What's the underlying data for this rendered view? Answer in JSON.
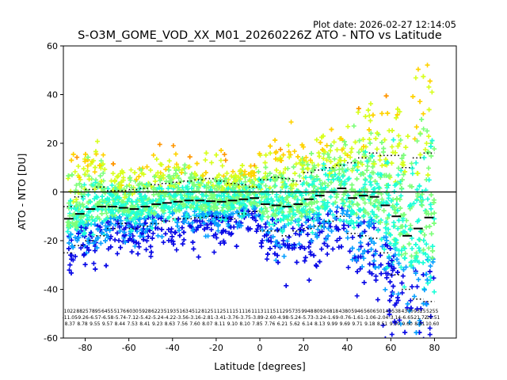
{
  "plot_date": "Plot date: 2026-02-27 12:14:05",
  "chart_data": {
    "type": "scatter",
    "title": "S-O3M_GOME_VOD_XX_M01_20260226Z ATO - NTO vs Latitude",
    "xlabel": "Latitude [degrees]",
    "ylabel": "ATO - NTO [DU]",
    "xlim": [
      -90,
      90
    ],
    "ylim": [
      -60,
      60
    ],
    "xticks": [
      -80,
      -60,
      -40,
      -20,
      0,
      20,
      40,
      60,
      80
    ],
    "yticks": [
      -60,
      -40,
      -20,
      0,
      20,
      40,
      60
    ],
    "reference_line_y": 0,
    "bin_lat": [
      -87.5,
      -82.5,
      -77.5,
      -72.5,
      -67.5,
      -62.5,
      -57.5,
      -52.5,
      -47.5,
      -42.5,
      -37.5,
      -32.5,
      -27.5,
      -22.5,
      -17.5,
      -12.5,
      -7.5,
      -2.5,
      2.5,
      7.5,
      12.5,
      17.5,
      22.5,
      27.5,
      32.5,
      37.5,
      42.5,
      47.5,
      52.5,
      57.5,
      62.5,
      67.5,
      72.5,
      77.5
    ],
    "bin_mean": [
      -11,
      -9,
      -7,
      -6,
      -6,
      -6.5,
      -7,
      -6,
      -5,
      -4.5,
      -4,
      -3.5,
      -3.5,
      -3.8,
      -4,
      -3.5,
      -3,
      -2.5,
      -5,
      -5.5,
      -6,
      -5,
      -3,
      -1.5,
      0,
      1.5,
      -2.5,
      -1.5,
      -2,
      -5.5,
      -10,
      -18,
      -15,
      -10.5
    ],
    "bin_upper": [
      -6,
      -2,
      1,
      2,
      0.5,
      0.5,
      1,
      1.5,
      3,
      3.5,
      4,
      4.5,
      5,
      5.5,
      4.5,
      3.5,
      3,
      2,
      5,
      6,
      5.5,
      4.5,
      8,
      9,
      10,
      11,
      12,
      14,
      16,
      15,
      15,
      10,
      14,
      16
    ],
    "bin_lower": [
      -25,
      -22,
      -20,
      -18,
      -15,
      -13,
      -15,
      -14,
      -13,
      -12,
      -11,
      -11,
      -10.5,
      -10,
      -10.5,
      -11,
      -9,
      -8,
      -16,
      -16,
      -18,
      -16,
      -15,
      -14,
      -12,
      -10,
      -17,
      -18,
      -19,
      -25,
      -34,
      -40,
      -44,
      -45
    ],
    "counts_row1": [
      "1022",
      "8825",
      "7895",
      "6455",
      "5176",
      "6030",
      "5928",
      "6223",
      "5193",
      "5163",
      "4512",
      "8125",
      "1125",
      "1115",
      "1116",
      "1113",
      "1115",
      "1129",
      "5735",
      "9948",
      "8093",
      "6818",
      "4380",
      "5946",
      "5606",
      "5014",
      "5538",
      "4370",
      "9325",
      "5255"
    ],
    "counts_row2": [
      "-11.05",
      "-9.26",
      "-6.57",
      "-6.58",
      "-5.74",
      "-7.12",
      "-5.42",
      "-5.24",
      "-4.22",
      "-3.56",
      "-3.16",
      "-2.81",
      "-3.41",
      "-3.76",
      "-3.75",
      "-3.89",
      "-2.60",
      "-4.98",
      "-5.24",
      "-5.73",
      "-3.24",
      "-1.69",
      "-0.76",
      "-1.61",
      "-1.06",
      "-2.04",
      "-3.14",
      "-6.65",
      "-21.72",
      "-10.51"
    ],
    "counts_row3": [
      "8.37",
      "8.78",
      "9.55",
      "9.57",
      "8.44",
      "7.53",
      "8.41",
      "9.23",
      "8.63",
      "7.56",
      "7.60",
      "8.07",
      "8.11",
      "9.10",
      "8.10",
      "7.85",
      "7.76",
      "6.21",
      "5.62",
      "6.14",
      "8.13",
      "9.99",
      "9.69",
      "9.71",
      "9.18",
      "8.51",
      "9.50",
      "9.60",
      "8.81",
      "10.60"
    ],
    "colorscale": [
      "#0a0ae6",
      "#0aa0ff",
      "#1effd8",
      "#7dff7a",
      "#d8ff1e",
      "#ffd200",
      "#ff9600"
    ]
  }
}
